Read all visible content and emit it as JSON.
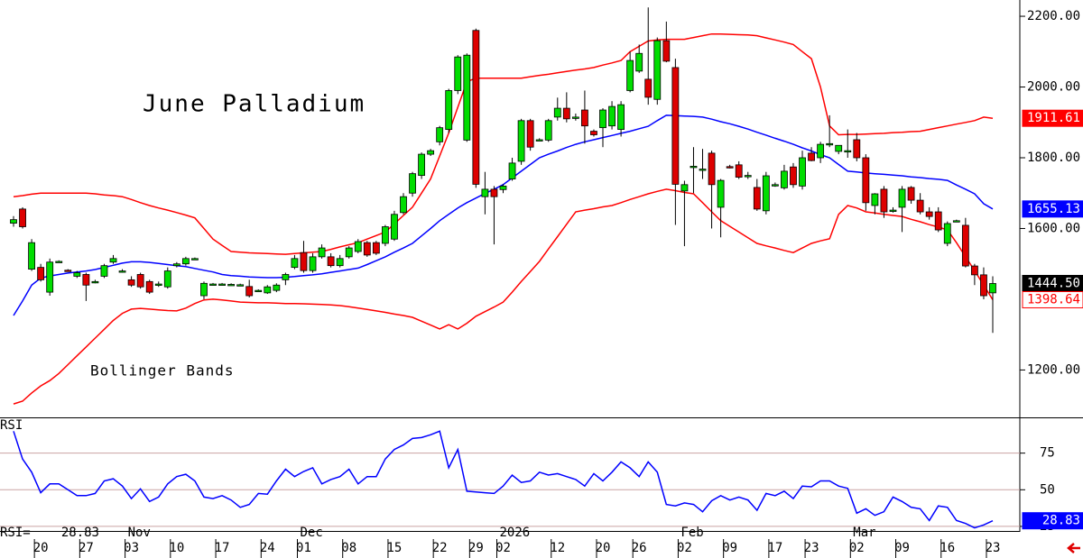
{
  "chart_data": {
    "type": "candlestick",
    "title": "June Palladium",
    "categories": [
      null,
      null,
      null,
      "20",
      null,
      null,
      null,
      null,
      "27",
      null,
      null,
      null,
      null,
      "03",
      null,
      null,
      null,
      null,
      "10",
      null,
      null,
      null,
      null,
      "17",
      null,
      null,
      null,
      null,
      "24",
      null,
      null,
      null,
      "01",
      null,
      null,
      null,
      null,
      "08",
      null,
      null,
      null,
      null,
      "15",
      null,
      null,
      null,
      null,
      "22",
      null,
      null,
      null,
      "29",
      null,
      null,
      "02",
      null,
      null,
      null,
      null,
      null,
      "12",
      null,
      null,
      null,
      null,
      "20",
      null,
      null,
      null,
      "26",
      null,
      null,
      null,
      null,
      "02",
      null,
      null,
      null,
      null,
      "09",
      null,
      null,
      null,
      null,
      "17",
      null,
      null,
      null,
      "23",
      null,
      null,
      null,
      null,
      "02",
      null,
      null,
      null,
      null,
      "09",
      null,
      null,
      null,
      null,
      "16",
      null,
      null,
      null,
      null,
      "23"
    ],
    "months": [
      null,
      null,
      null,
      null,
      null,
      null,
      null,
      null,
      null,
      null,
      null,
      null,
      null,
      "Nov",
      null,
      null,
      null,
      null,
      null,
      null,
      null,
      null,
      null,
      null,
      null,
      null,
      null,
      null,
      null,
      null,
      null,
      null,
      "Dec",
      null,
      null,
      null,
      null,
      null,
      null,
      null,
      null,
      null,
      null,
      null,
      null,
      null,
      null,
      null,
      null,
      null,
      null,
      null,
      null,
      null,
      "2026",
      null,
      null,
      null,
      null,
      null,
      null,
      null,
      null,
      null,
      null,
      null,
      null,
      null,
      null,
      null,
      null,
      null,
      null,
      null,
      "Feb",
      null,
      null,
      null,
      null,
      null,
      null,
      null,
      null,
      null,
      null,
      null,
      null,
      null,
      null,
      null,
      null,
      null,
      null,
      "Mar",
      null,
      null,
      null,
      null,
      null,
      null,
      null,
      null,
      null,
      null,
      null,
      null,
      null,
      null,
      null
    ],
    "ohlc": [
      [
        1615,
        1635,
        1605,
        1625
      ],
      [
        1655,
        1660,
        1600,
        1605
      ],
      [
        1485,
        1570,
        1480,
        1560
      ],
      [
        1490,
        1500,
        1450,
        1455
      ],
      [
        1420,
        1515,
        1410,
        1505
      ],
      [
        1507,
        1510,
        1504,
        1507
      ],
      [
        1482,
        1485,
        1478,
        1480
      ],
      [
        1465,
        1480,
        1460,
        1475
      ],
      [
        1470,
        1475,
        1395,
        1440
      ],
      [
        1450,
        1455,
        1445,
        1450
      ],
      [
        1465,
        1500,
        1460,
        1495
      ],
      [
        1505,
        1525,
        1500,
        1515
      ],
      [
        1480,
        1485,
        1475,
        1480
      ],
      [
        1455,
        1465,
        1435,
        1440
      ],
      [
        1470,
        1475,
        1430,
        1435
      ],
      [
        1450,
        1455,
        1415,
        1420
      ],
      [
        1440,
        1450,
        1435,
        1443
      ],
      [
        1435,
        1490,
        1430,
        1480
      ],
      [
        1495,
        1505,
        1490,
        1500
      ],
      [
        1500,
        1520,
        1495,
        1515
      ],
      [
        1515,
        1518,
        1512,
        1515
      ],
      [
        1410,
        1450,
        1400,
        1445
      ],
      [
        1443,
        1446,
        1440,
        1443
      ],
      [
        1443,
        1446,
        1440,
        1443
      ],
      [
        1442,
        1445,
        1439,
        1442
      ],
      [
        1441,
        1444,
        1438,
        1441
      ],
      [
        1436,
        1455,
        1405,
        1410
      ],
      [
        1425,
        1428,
        1422,
        1425
      ],
      [
        1418,
        1440,
        1415,
        1435
      ],
      [
        1425,
        1445,
        1420,
        1440
      ],
      [
        1455,
        1475,
        1440,
        1470
      ],
      [
        1490,
        1525,
        1485,
        1515
      ],
      [
        1532,
        1565,
        1475,
        1481
      ],
      [
        1481,
        1530,
        1475,
        1520
      ],
      [
        1520,
        1555,
        1515,
        1545
      ],
      [
        1520,
        1530,
        1490,
        1495
      ],
      [
        1495,
        1525,
        1490,
        1515
      ],
      [
        1520,
        1550,
        1515,
        1545
      ],
      [
        1535,
        1570,
        1530,
        1563
      ],
      [
        1560,
        1565,
        1520,
        1525
      ],
      [
        1560,
        1565,
        1525,
        1530
      ],
      [
        1558,
        1610,
        1550,
        1605
      ],
      [
        1570,
        1650,
        1565,
        1640
      ],
      [
        1645,
        1700,
        1640,
        1690
      ],
      [
        1700,
        1760,
        1690,
        1755
      ],
      [
        1750,
        1815,
        1740,
        1810
      ],
      [
        1810,
        1825,
        1805,
        1820
      ],
      [
        1845,
        1890,
        1835,
        1885
      ],
      [
        1880,
        1995,
        1870,
        1990
      ],
      [
        1990,
        2090,
        1980,
        2085
      ],
      [
        1850,
        2095,
        1845,
        2090
      ],
      [
        2160,
        2165,
        1715,
        1725
      ],
      [
        1690,
        1760,
        1640,
        1711
      ],
      [
        1711,
        1720,
        1555,
        1690
      ],
      [
        1710,
        1725,
        1700,
        1720
      ],
      [
        1740,
        1800,
        1735,
        1785
      ],
      [
        1790,
        1910,
        1780,
        1905
      ],
      [
        1905,
        1910,
        1820,
        1830
      ],
      [
        1851,
        1855,
        1847,
        1851
      ],
      [
        1850,
        1910,
        1845,
        1905
      ],
      [
        1915,
        1970,
        1905,
        1940
      ],
      [
        1940,
        1985,
        1900,
        1910
      ],
      [
        1915,
        1925,
        1905,
        1915
      ],
      [
        1935,
        1990,
        1840,
        1890
      ],
      [
        1875,
        1880,
        1860,
        1865
      ],
      [
        1885,
        1940,
        1830,
        1935
      ],
      [
        1890,
        1960,
        1880,
        1945
      ],
      [
        1880,
        1960,
        1860,
        1950
      ],
      [
        1990,
        2100,
        1985,
        2075
      ],
      [
        2045,
        2120,
        2040,
        2095
      ],
      [
        2022,
        2225,
        1950,
        1971
      ],
      [
        1965,
        2140,
        1950,
        2131
      ],
      [
        2131,
        2185,
        2070,
        2073
      ],
      [
        2055,
        2080,
        1610,
        1725
      ],
      [
        1706,
        1735,
        1550,
        1724
      ],
      [
        1774,
        1830,
        1700,
        1776
      ],
      [
        1765,
        1825,
        1740,
        1768
      ],
      [
        1813,
        1820,
        1600,
        1724
      ],
      [
        1660,
        1740,
        1575,
        1736
      ],
      [
        1775,
        1780,
        1770,
        1774
      ],
      [
        1780,
        1790,
        1740,
        1745
      ],
      [
        1749,
        1760,
        1740,
        1750
      ],
      [
        1716,
        1740,
        1650,
        1655
      ],
      [
        1650,
        1760,
        1640,
        1749
      ],
      [
        1724,
        1730,
        1718,
        1724
      ],
      [
        1715,
        1780,
        1710,
        1762
      ],
      [
        1774,
        1785,
        1715,
        1724
      ],
      [
        1720,
        1820,
        1710,
        1800
      ],
      [
        1813,
        1830,
        1790,
        1792
      ],
      [
        1800,
        1845,
        1785,
        1838
      ],
      [
        1838,
        1920,
        1830,
        1840
      ],
      [
        1818,
        1835,
        1810,
        1835
      ],
      [
        1818,
        1880,
        1800,
        1820
      ],
      [
        1851,
        1870,
        1790,
        1800
      ],
      [
        1800,
        1810,
        1650,
        1673
      ],
      [
        1665,
        1700,
        1640,
        1698
      ],
      [
        1711,
        1720,
        1630,
        1647
      ],
      [
        1652,
        1660,
        1645,
        1652
      ],
      [
        1660,
        1720,
        1590,
        1711
      ],
      [
        1716,
        1720,
        1670,
        1680
      ],
      [
        1680,
        1700,
        1640,
        1647
      ],
      [
        1647,
        1660,
        1625,
        1634
      ],
      [
        1647,
        1660,
        1590,
        1596
      ],
      [
        1558,
        1620,
        1550,
        1614
      ],
      [
        1622,
        1625,
        1618,
        1622
      ],
      [
        1609,
        1630,
        1490,
        1494
      ],
      [
        1494,
        1500,
        1440,
        1469
      ],
      [
        1469,
        1490,
        1400,
        1410
      ],
      [
        1418,
        1465,
        1305,
        1444.5
      ]
    ],
    "last_close_label": "1444.50",
    "up_color": "#00dd00",
    "down_color": "#dd0000",
    "ylim": [
      1066,
      2246
    ],
    "yticks": [
      {
        "value": 2200,
        "label": "2200.00"
      },
      {
        "value": 2000,
        "label": "2000.00"
      },
      {
        "value": 1800,
        "label": "1800.00"
      },
      {
        "value": 1600,
        "label": "1600.00"
      },
      {
        "value": 1200,
        "label": "1200.00"
      }
    ],
    "bollinger": {
      "label": "Bollinger Bands",
      "band_color": "#ff0000",
      "middle_color": "#0000ff",
      "upper": [
        1690,
        1693,
        1697,
        1700,
        1700,
        1700,
        1700,
        1700,
        1700,
        1698,
        1695,
        1693,
        1690,
        1682,
        1673,
        1665,
        1658,
        1652,
        1645,
        1638,
        1630,
        1600,
        1570,
        1552,
        1535,
        1533,
        1531,
        1530,
        1529,
        1528,
        1527,
        1529,
        1531,
        1533,
        1535,
        1541,
        1548,
        1554,
        1560,
        1570,
        1580,
        1590,
        1613,
        1637,
        1660,
        1700,
        1740,
        1805,
        1870,
        1943,
        2015,
        2025,
        2025,
        2025,
        2025,
        2025,
        2025,
        2029,
        2033,
        2036,
        2040,
        2044,
        2048,
        2051,
        2055,
        2062,
        2068,
        2075,
        2100,
        2115,
        2130,
        2133,
        2135,
        2135,
        2135,
        2140,
        2145,
        2150,
        2150,
        2149,
        2148,
        2147,
        2145,
        2139,
        2133,
        2127,
        2120,
        2100,
        2080,
        2000,
        1890,
        1865,
        1866,
        1866,
        1867,
        1868,
        1869,
        1871,
        1872,
        1874,
        1875,
        1880,
        1885,
        1890,
        1895,
        1900,
        1905,
        1915,
        1911.61
      ],
      "middle": [
        1354,
        1395,
        1440,
        1460,
        1466,
        1470,
        1474,
        1477,
        1480,
        1484,
        1490,
        1496,
        1502,
        1506,
        1506,
        1504,
        1501,
        1498,
        1495,
        1492,
        1487,
        1482,
        1477,
        1470,
        1467,
        1465,
        1463,
        1462,
        1461,
        1461,
        1462,
        1464,
        1467,
        1469,
        1472,
        1476,
        1480,
        1484,
        1488,
        1498,
        1509,
        1520,
        1533,
        1545,
        1558,
        1579,
        1600,
        1622,
        1640,
        1658,
        1673,
        1686,
        1699,
        1711,
        1724,
        1743,
        1762,
        1781,
        1800,
        1810,
        1819,
        1829,
        1838,
        1845,
        1851,
        1857,
        1863,
        1869,
        1875,
        1882,
        1889,
        1905,
        1920,
        1919,
        1918,
        1917,
        1915,
        1909,
        1902,
        1896,
        1889,
        1881,
        1872,
        1864,
        1855,
        1847,
        1838,
        1828,
        1819,
        1809,
        1800,
        1781,
        1762,
        1760,
        1757,
        1755,
        1753,
        1751,
        1749,
        1746,
        1744,
        1741,
        1739,
        1736,
        1723,
        1711,
        1698,
        1670,
        1655.13
      ],
      "lower": [
        1104,
        1112,
        1135,
        1155,
        1170,
        1190,
        1215,
        1240,
        1265,
        1290,
        1315,
        1340,
        1360,
        1372,
        1374,
        1372,
        1370,
        1368,
        1367,
        1375,
        1388,
        1398,
        1400,
        1398,
        1395,
        1392,
        1391,
        1390,
        1390,
        1389,
        1388,
        1388,
        1387,
        1386,
        1385,
        1384,
        1382,
        1379,
        1375,
        1371,
        1367,
        1363,
        1358,
        1354,
        1349,
        1338,
        1327,
        1316,
        1328,
        1316,
        1332,
        1352,
        1365,
        1378,
        1392,
        1420,
        1450,
        1478,
        1507,
        1542,
        1577,
        1612,
        1647,
        1652,
        1656,
        1661,
        1665,
        1673,
        1682,
        1690,
        1698,
        1705,
        1711,
        1707,
        1702,
        1698,
        1673,
        1647,
        1622,
        1606,
        1590,
        1574,
        1558,
        1551,
        1545,
        1538,
        1532,
        1545,
        1558,
        1565,
        1571,
        1640,
        1665,
        1658,
        1647,
        1644,
        1640,
        1637,
        1634,
        1626,
        1619,
        1611,
        1604,
        1596,
        1560,
        1520,
        1481,
        1440,
        1398.64
      ]
    },
    "rsi": {
      "label": "RSI",
      "readout_label": "RSI=",
      "color": "#0000ff",
      "grid": true,
      "ylim": [
        22.5,
        99.4
      ],
      "yticks": [
        25,
        50,
        75
      ],
      "values": [
        90,
        71,
        62,
        48,
        54,
        54,
        50,
        46,
        46,
        47.5,
        56,
        57.5,
        52.5,
        44,
        50.6,
        42,
        45,
        54,
        59,
        60.6,
        56,
        45,
        44,
        46,
        43,
        38,
        40,
        47.5,
        47,
        56,
        64,
        59,
        62.5,
        65,
        54,
        57,
        59,
        64,
        54,
        59,
        59,
        71,
        77.5,
        80.6,
        85,
        85.6,
        87.5,
        90,
        65,
        77.5,
        49,
        48.5,
        48,
        47.5,
        52.5,
        60,
        55,
        56,
        62,
        60,
        61,
        59,
        57,
        52.5,
        61,
        56,
        62,
        69,
        65,
        59,
        69,
        62,
        40,
        39,
        41,
        40,
        35,
        42.5,
        46,
        43,
        45,
        43,
        36,
        47.5,
        46,
        49,
        44,
        52.5,
        52,
        56,
        56,
        52.5,
        51,
        34,
        37,
        32.5,
        35,
        45,
        42,
        38,
        37,
        29,
        39,
        38,
        29,
        27,
        24,
        26,
        28.83
      ]
    }
  }
}
